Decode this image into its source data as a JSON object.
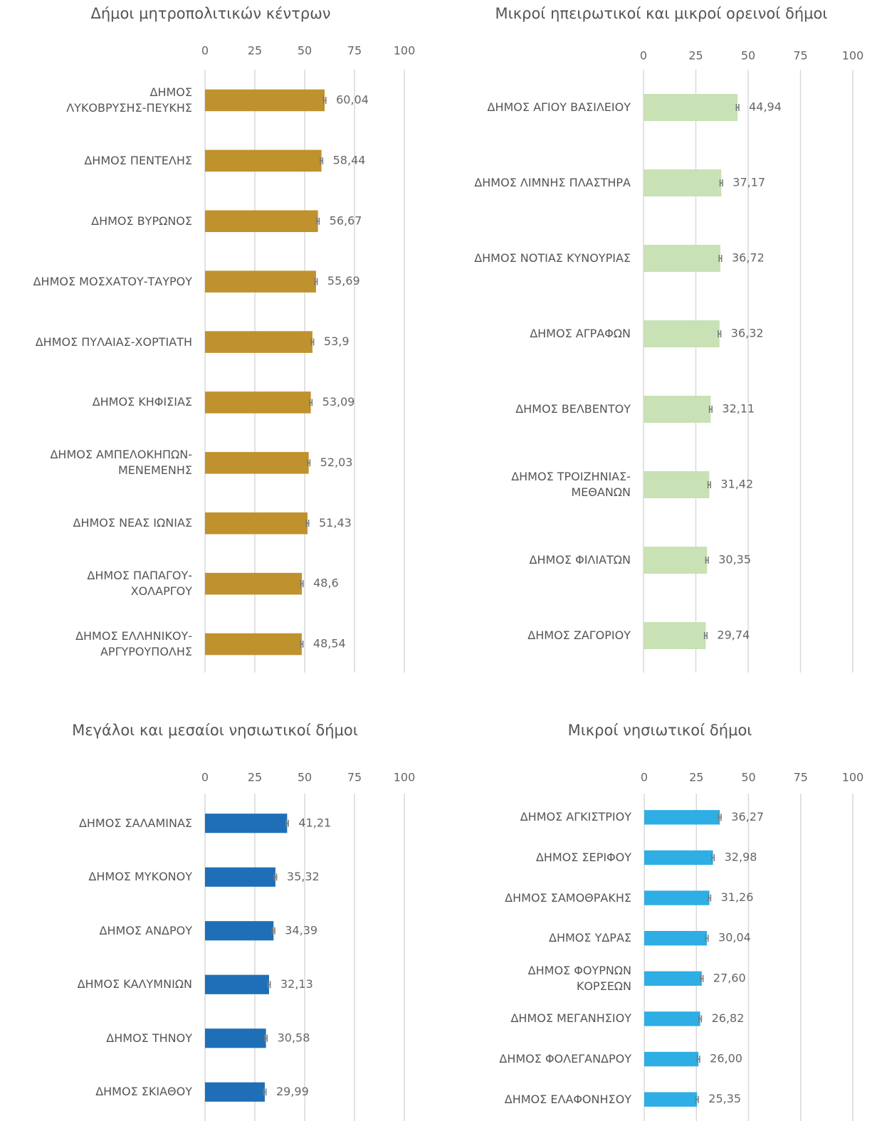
{
  "chart_data": [
    {
      "type": "barh",
      "title": "Δήμοι μητροπολιτικών κέντρων",
      "categories": [
        "ΔΗΜΟΣ \nΛΥΚΟΒΡΥΣΗΣ-ΠΕΥΚΗΣ",
        "ΔΗΜΟΣ ΠΕΝΤΕΛΗΣ",
        "ΔΗΜΟΣ ΒΥΡΩΝΟΣ",
        "ΔΗΜΟΣ ΜΟΣΧΑΤΟΥ-ΤΑΥΡΟΥ",
        "ΔΗΜΟΣ ΠΥΛΑΙΑΣ-ΧΟΡΤΙΑΤΗ",
        "ΔΗΜΟΣ ΚΗΦΙΣΙΑΣ",
        "ΔΗΜΟΣ ΑΜΠΕΛΟΚΗΠΩΝ-\nΜΕΝΕΜΕΝΗΣ",
        "ΔΗΜΟΣ ΝΕΑΣ ΙΩΝΙΑΣ",
        "ΔΗΜΟΣ ΠΑΠΑΓΟΥ-\nΧΟΛΑΡΓΟΥ",
        "ΔΗΜΟΣ ΕΛΛΗΝΙΚΟΥ-\nΑΡΓΥΡΟΥΠΟΛΗΣ"
      ],
      "values": [
        60.04,
        58.44,
        56.67,
        55.69,
        53.9,
        53.09,
        52.03,
        51.43,
        48.6,
        48.54
      ],
      "value_labels": [
        "60,04",
        "58,44",
        "56,67",
        "55,69",
        "53,9",
        "53,09",
        "52,03",
        "51,43",
        "48,6",
        "48,54"
      ],
      "errors": [
        0.6,
        0.6,
        0.6,
        0.6,
        0.6,
        0.6,
        0.6,
        0.6,
        0.6,
        0.6
      ],
      "color": "#c0922e",
      "xlim": [
        0,
        100
      ],
      "xticks": [
        0,
        25,
        50,
        75,
        100
      ],
      "grid": true
    },
    {
      "type": "barh",
      "title": "Μικροί ηπειρωτικοί και μικροί ορεινοί δήμοι",
      "categories": [
        "ΔΗΜΟΣ ΑΓΙΟΥ ΒΑΣΙΛΕΙΟΥ",
        "ΔΗΜΟΣ ΛΙΜΝΗΣ ΠΛΑΣΤΗΡΑ",
        "ΔΗΜΟΣ ΝΟΤΙΑΣ ΚΥΝΟΥΡΙΑΣ",
        "ΔΗΜΟΣ ΑΓΡΑΦΩΝ",
        "ΔΗΜΟΣ ΒΕΛΒΕΝΤΟΥ",
        "ΔΗΜΟΣ ΤΡΟΙΖΗΝΙΑΣ-\nΜΕΘΑΝΩΝ",
        "ΔΗΜΟΣ ΦΙΛΙΑΤΩΝ",
        "ΔΗΜΟΣ ΖΑΓΟΡΙΟΥ"
      ],
      "values": [
        44.94,
        37.17,
        36.72,
        36.32,
        32.11,
        31.42,
        30.35,
        29.74
      ],
      "value_labels": [
        "44,94",
        "37,17",
        "36,72",
        "36,32",
        "32,11",
        "31,42",
        "30,35",
        "29,74"
      ],
      "errors": [
        0.6,
        0.6,
        0.6,
        0.6,
        0.6,
        0.6,
        0.6,
        0.6
      ],
      "color": "#c8e1b5",
      "xlim": [
        0,
        100
      ],
      "xticks": [
        0,
        25,
        50,
        75,
        100
      ],
      "grid": true
    },
    {
      "type": "barh",
      "title": "Μεγάλοι και μεσαίοι νησιωτικοί δήμοι",
      "categories": [
        "ΔΗΜΟΣ ΣΑΛΑΜΙΝΑΣ",
        "ΔΗΜΟΣ ΜΥΚΟΝΟΥ",
        "ΔΗΜΟΣ ΑΝΔΡΟΥ",
        "ΔΗΜΟΣ ΚΑΛΥΜΝΙΩΝ",
        "ΔΗΜΟΣ ΤΗΝΟΥ",
        "ΔΗΜΟΣ ΣΚΙΑΘΟΥ"
      ],
      "values": [
        41.21,
        35.32,
        34.39,
        32.13,
        30.58,
        29.99
      ],
      "value_labels": [
        "41,21",
        "35,32",
        "34,39",
        "32,13",
        "30,58",
        "29,99"
      ],
      "errors": [
        0.6,
        0.6,
        0.6,
        0.6,
        0.6,
        0.6
      ],
      "color": "#1f6fb8",
      "xlim": [
        0,
        100
      ],
      "xticks": [
        0,
        25,
        50,
        75,
        100
      ],
      "grid": true
    },
    {
      "type": "barh",
      "title": "Μικροί νησιωτικοί δήμοι",
      "categories": [
        "ΔΗΜΟΣ ΑΓΚΙΣΤΡΙΟΥ",
        "ΔΗΜΟΣ ΣΕΡΙΦΟΥ",
        "ΔΗΜΟΣ ΣΑΜΟΘΡΑΚΗΣ",
        "ΔΗΜΟΣ ΥΔΡΑΣ",
        "ΔΗΜΟΣ ΦΟΥΡΝΩΝ\nΚΟΡΣΕΩΝ",
        "ΔΗΜΟΣ ΜΕΓΑΝΗΣΙΟΥ",
        "ΔΗΜΟΣ ΦΟΛΕΓΑΝΔΡΟΥ",
        "ΔΗΜΟΣ ΕΛΑΦΟΝΗΣΟΥ"
      ],
      "values": [
        36.27,
        32.98,
        31.26,
        30.04,
        27.6,
        26.82,
        26.0,
        25.35
      ],
      "value_labels": [
        "36,27",
        "32,98",
        "31,26",
        "30,04",
        "27,60",
        "26,82",
        "26,00",
        "25,35"
      ],
      "errors": [
        0.6,
        0.6,
        0.6,
        0.6,
        0.6,
        0.6,
        0.6,
        0.6
      ],
      "color": "#2eaee4",
      "xlim": [
        0,
        100
      ],
      "xticks": [
        0,
        25,
        50,
        75,
        100
      ],
      "grid": true
    }
  ]
}
